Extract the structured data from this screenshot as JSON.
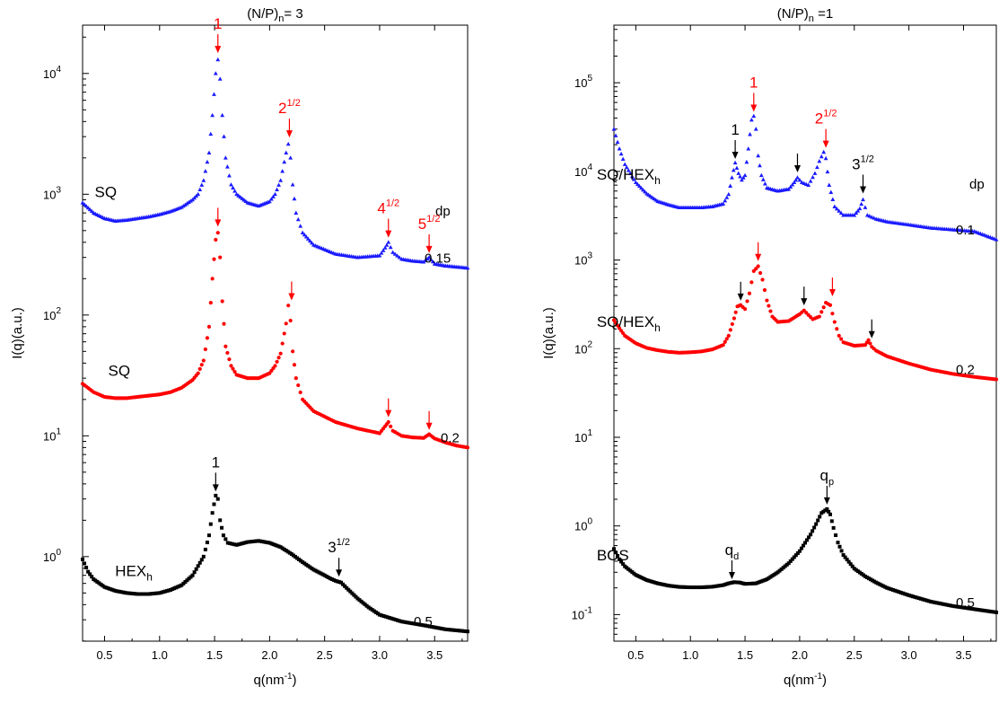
{
  "chart_data": [
    {
      "type": "scatter",
      "title": "(N/P)",
      "title_sub": "n",
      "title_tail": "= 3",
      "xlabel": "q(nm",
      "xlabel_sup": "-1",
      "xlabel_tail": ")",
      "ylabel": "I(q)(a.u.)",
      "xlim": [
        0.3,
        3.8
      ],
      "ylim_log10": [
        -0.7,
        4.4
      ],
      "y_scale": "log",
      "x_ticks": [
        "0.5",
        "1.0",
        "1.5",
        "2.0",
        "2.5",
        "3.0",
        "3.5"
      ],
      "y_tick_exponents": [
        "0",
        "1",
        "2",
        "3",
        "4"
      ],
      "dp_header": "dp",
      "series": [
        {
          "color": "#1a1aff",
          "marker": "triangle",
          "dp": "0.15",
          "phase": "SQ",
          "phase_sub": "",
          "x": [
            0.3,
            0.4,
            0.5,
            0.6,
            0.7,
            0.8,
            0.9,
            1.0,
            1.1,
            1.2,
            1.3,
            1.35,
            1.4,
            1.45,
            1.48,
            1.51,
            1.53,
            1.55,
            1.57,
            1.6,
            1.65,
            1.7,
            1.8,
            1.9,
            2.0,
            2.05,
            2.1,
            2.15,
            2.17,
            2.19,
            2.21,
            2.24,
            2.3,
            2.4,
            2.6,
            2.8,
            3.0,
            3.05,
            3.08,
            3.12,
            3.2,
            3.3,
            3.4,
            3.45,
            3.5,
            3.6,
            3.7,
            3.8
          ],
          "y": [
            850,
            700,
            630,
            600,
            610,
            630,
            650,
            680,
            720,
            780,
            900,
            1000,
            1300,
            2200,
            4500,
            10000,
            13000,
            9000,
            4500,
            2000,
            1200,
            1000,
            850,
            800,
            870,
            1000,
            1300,
            2200,
            2600,
            2000,
            1200,
            700,
            480,
            380,
            320,
            300,
            310,
            360,
            400,
            330,
            290,
            280,
            275,
            300,
            265,
            255,
            250,
            245
          ]
        },
        {
          "color": "#ff0000",
          "marker": "circle",
          "dp": "0.2",
          "phase": "SQ",
          "phase_sub": "",
          "x": [
            0.3,
            0.4,
            0.5,
            0.6,
            0.7,
            0.8,
            0.9,
            1.0,
            1.1,
            1.2,
            1.3,
            1.35,
            1.4,
            1.45,
            1.48,
            1.51,
            1.53,
            1.55,
            1.57,
            1.6,
            1.65,
            1.7,
            1.8,
            1.9,
            2.0,
            2.05,
            2.1,
            2.15,
            2.17,
            2.19,
            2.21,
            2.24,
            2.3,
            2.4,
            2.6,
            2.8,
            3.0,
            3.05,
            3.08,
            3.12,
            3.2,
            3.3,
            3.4,
            3.45,
            3.5,
            3.6,
            3.7,
            3.8
          ],
          "y": [
            27,
            23,
            21,
            20.5,
            20.5,
            21,
            21.5,
            22,
            23,
            25,
            29,
            33,
            42,
            80,
            200,
            420,
            480,
            300,
            130,
            55,
            38,
            32,
            30,
            30,
            33,
            38,
            48,
            85,
            120,
            90,
            50,
            30,
            20,
            16,
            13,
            11.5,
            10.5,
            12,
            13,
            11,
            10,
            9.7,
            9.6,
            10.3,
            9.5,
            8.8,
            8.3,
            8.0
          ]
        },
        {
          "color": "#000000",
          "marker": "square",
          "dp": "0.5",
          "phase": "HEX",
          "phase_sub": "h",
          "x": [
            0.3,
            0.35,
            0.4,
            0.5,
            0.6,
            0.7,
            0.8,
            0.9,
            1.0,
            1.1,
            1.2,
            1.3,
            1.4,
            1.45,
            1.48,
            1.51,
            1.53,
            1.55,
            1.58,
            1.62,
            1.7,
            1.8,
            1.9,
            2.0,
            2.1,
            2.2,
            2.3,
            2.4,
            2.5,
            2.55,
            2.6,
            2.65,
            2.7,
            2.8,
            2.9,
            3.0,
            3.2,
            3.4,
            3.6,
            3.7,
            3.8
          ],
          "y": [
            0.95,
            0.75,
            0.65,
            0.56,
            0.52,
            0.5,
            0.49,
            0.49,
            0.5,
            0.53,
            0.58,
            0.7,
            1.0,
            1.5,
            2.3,
            3.2,
            3.0,
            2.0,
            1.5,
            1.3,
            1.25,
            1.32,
            1.35,
            1.3,
            1.2,
            1.05,
            0.9,
            0.78,
            0.7,
            0.66,
            0.63,
            0.61,
            0.55,
            0.45,
            0.38,
            0.33,
            0.29,
            0.27,
            0.25,
            0.245,
            0.24
          ]
        }
      ],
      "annotations": [
        {
          "text": "1",
          "sup": "",
          "color": "#ff0000",
          "x": 1.53,
          "y": 14500
        },
        {
          "text": "2",
          "sup": "1/2",
          "color": "#ff0000",
          "x": 2.18,
          "y": 2900
        },
        {
          "text": "4",
          "sup": "1/2",
          "color": "#ff0000",
          "x": 3.08,
          "y": 430
        },
        {
          "text": "5",
          "sup": "1/2",
          "color": "#ff0000",
          "x": 3.45,
          "y": 320
        },
        {
          "text": "",
          "sup": "",
          "color": "#ff0000",
          "x": 1.53,
          "y": 530
        },
        {
          "text": "",
          "sup": "",
          "color": "#ff0000",
          "x": 2.2,
          "y": 130
        },
        {
          "text": "",
          "sup": "",
          "color": "#ff0000",
          "x": 3.08,
          "y": 14
        },
        {
          "text": "",
          "sup": "",
          "color": "#ff0000",
          "x": 3.45,
          "y": 11
        },
        {
          "text": "1",
          "sup": "",
          "color": "#000000",
          "x": 1.51,
          "y": 3.4
        },
        {
          "text": "3",
          "sup": "1/2",
          "color": "#000000",
          "x": 2.63,
          "y": 0.67
        }
      ]
    },
    {
      "type": "scatter",
      "title": "(N/P)",
      "title_sub": "n",
      "title_tail": " =1",
      "xlabel": "q(nm",
      "xlabel_sup": "-1",
      "xlabel_tail": ")",
      "ylabel": "I(q)(a.u.)",
      "xlim": [
        0.3,
        3.8
      ],
      "ylim_log10": [
        -1.3,
        5.65
      ],
      "y_scale": "log",
      "x_ticks": [
        "0.5",
        "1.0",
        "1.5",
        "2.0",
        "2.5",
        "3.0",
        "3.5"
      ],
      "y_tick_exponents": [
        "-1",
        "0",
        "1",
        "2",
        "3",
        "4",
        "5"
      ],
      "dp_header": "dp",
      "series": [
        {
          "color": "#1a1aff",
          "marker": "triangle",
          "dp": "0.1",
          "phase": "SQ/HEX",
          "phase_sub": "h",
          "x": [
            0.3,
            0.35,
            0.4,
            0.5,
            0.6,
            0.7,
            0.8,
            0.9,
            1.0,
            1.1,
            1.2,
            1.3,
            1.35,
            1.38,
            1.41,
            1.44,
            1.47,
            1.5,
            1.53,
            1.56,
            1.58,
            1.6,
            1.62,
            1.65,
            1.7,
            1.8,
            1.9,
            1.95,
            1.98,
            2.02,
            2.08,
            2.14,
            2.18,
            2.22,
            2.24,
            2.27,
            2.32,
            2.4,
            2.5,
            2.55,
            2.58,
            2.62,
            2.7,
            2.8,
            3.0,
            3.2,
            3.4,
            3.6,
            3.8
          ],
          "y": [
            30000,
            18000,
            12000,
            7500,
            5600,
            4600,
            4200,
            3900,
            3900,
            3900,
            4000,
            4300,
            5500,
            8500,
            12500,
            9500,
            8000,
            9000,
            18000,
            38000,
            42000,
            30000,
            15000,
            9000,
            6500,
            6000,
            6300,
            7500,
            8500,
            7500,
            7000,
            9500,
            13000,
            16500,
            14000,
            7000,
            4000,
            3200,
            3200,
            3800,
            4800,
            3200,
            2900,
            2700,
            2500,
            2300,
            2200,
            2100,
            1700
          ]
        },
        {
          "color": "#ff0000",
          "marker": "circle",
          "dp": "0.2",
          "phase": "SQ/HEX",
          "phase_sub": "h",
          "x": [
            0.3,
            0.35,
            0.4,
            0.5,
            0.6,
            0.7,
            0.8,
            0.9,
            1.0,
            1.1,
            1.2,
            1.3,
            1.35,
            1.4,
            1.43,
            1.46,
            1.5,
            1.54,
            1.58,
            1.62,
            1.66,
            1.7,
            1.75,
            1.8,
            1.9,
            2.0,
            2.04,
            2.08,
            2.12,
            2.18,
            2.24,
            2.28,
            2.32,
            2.36,
            2.4,
            2.5,
            2.6,
            2.63,
            2.66,
            2.7,
            2.8,
            3.0,
            3.2,
            3.4,
            3.6,
            3.8
          ],
          "y": [
            210,
            170,
            140,
            115,
            102,
            96,
            92,
            90,
            91,
            93,
            98,
            110,
            140,
            220,
            300,
            310,
            280,
            420,
            750,
            850,
            600,
            350,
            230,
            200,
            205,
            245,
            270,
            240,
            215,
            230,
            330,
            310,
            200,
            140,
            118,
            108,
            110,
            125,
            105,
            95,
            82,
            68,
            58,
            52,
            48,
            45
          ]
        },
        {
          "color": "#000000",
          "marker": "square",
          "dp": "0.5",
          "phase": "BOS",
          "phase_sub": "",
          "x": [
            0.3,
            0.35,
            0.4,
            0.5,
            0.6,
            0.7,
            0.8,
            0.9,
            1.0,
            1.1,
            1.2,
            1.3,
            1.35,
            1.4,
            1.45,
            1.5,
            1.6,
            1.7,
            1.8,
            1.9,
            2.0,
            2.1,
            2.15,
            2.2,
            2.25,
            2.28,
            2.31,
            2.35,
            2.4,
            2.5,
            2.6,
            2.7,
            2.8,
            3.0,
            3.2,
            3.4,
            3.6,
            3.8
          ],
          "y": [
            0.55,
            0.42,
            0.35,
            0.28,
            0.245,
            0.225,
            0.212,
            0.205,
            0.203,
            0.203,
            0.206,
            0.215,
            0.225,
            0.232,
            0.23,
            0.222,
            0.225,
            0.25,
            0.3,
            0.38,
            0.52,
            0.8,
            1.05,
            1.4,
            1.55,
            1.35,
            0.95,
            0.65,
            0.47,
            0.33,
            0.27,
            0.23,
            0.2,
            0.165,
            0.14,
            0.125,
            0.115,
            0.106
          ]
        }
      ],
      "annotations": [
        {
          "text": "1",
          "sup": "",
          "color": "#ff0000",
          "x": 1.58,
          "y": 46000
        },
        {
          "text": "2",
          "sup": "1/2",
          "color": "#ff0000",
          "x": 2.24,
          "y": 18000
        },
        {
          "text": "1",
          "sup": "",
          "color": "#000000",
          "x": 1.41,
          "y": 13500
        },
        {
          "text": "",
          "sup": "",
          "color": "#000000",
          "x": 1.98,
          "y": 9500
        },
        {
          "text": "3",
          "sup": "1/2",
          "color": "#000000",
          "x": 2.58,
          "y": 5500
        },
        {
          "text": "",
          "sup": "",
          "color": "#ff0000",
          "x": 1.62,
          "y": 950
        },
        {
          "text": "",
          "sup": "",
          "color": "#ff0000",
          "x": 2.3,
          "y": 380
        },
        {
          "text": "",
          "sup": "",
          "color": "#000000",
          "x": 1.46,
          "y": 340
        },
        {
          "text": "",
          "sup": "",
          "color": "#000000",
          "x": 2.04,
          "y": 300
        },
        {
          "text": "",
          "sup": "",
          "color": "#000000",
          "x": 2.66,
          "y": 128
        },
        {
          "text": "q",
          "sup": "",
          "sub": "d",
          "color": "#000000",
          "x": 1.38,
          "y": 0.245
        },
        {
          "text": "q",
          "sup": "",
          "sub": "p",
          "color": "#000000",
          "x": 2.25,
          "y": 1.7
        }
      ]
    }
  ]
}
